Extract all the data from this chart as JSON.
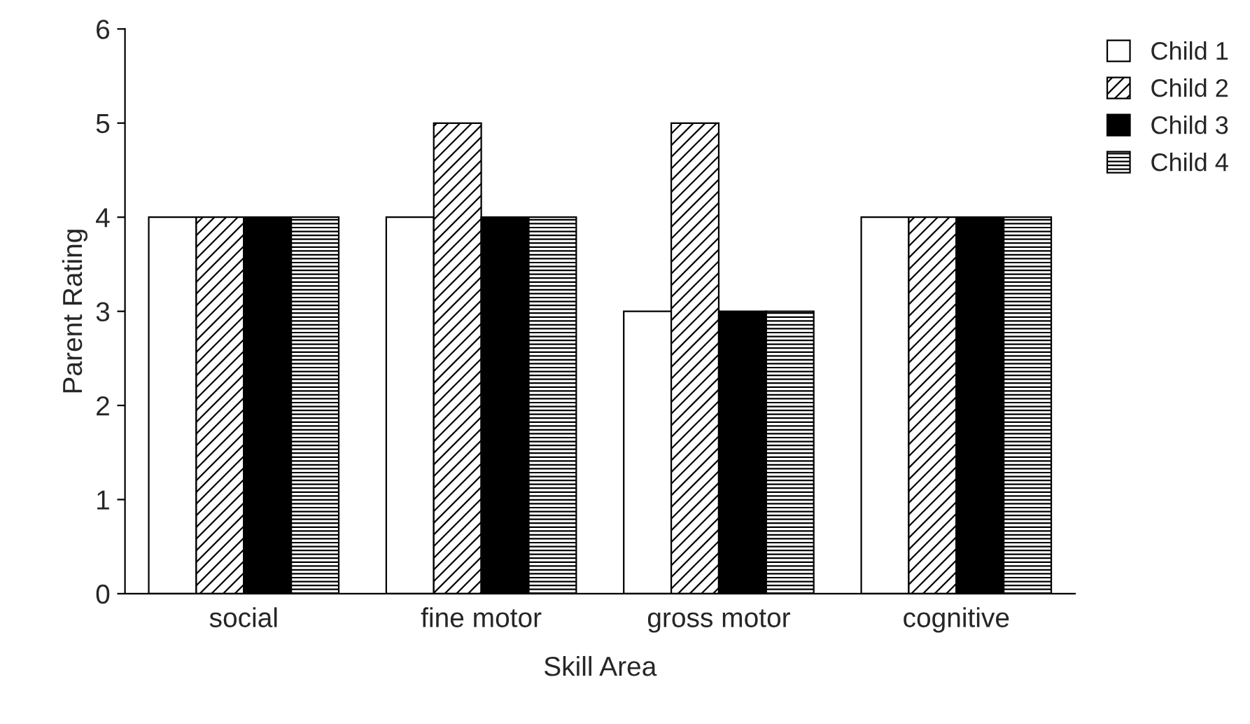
{
  "chart_data": {
    "type": "bar",
    "xlabel": "Skill Area",
    "ylabel": "Parent Rating",
    "categories": [
      "social",
      "fine motor",
      "gross motor",
      "cognitive"
    ],
    "series": [
      {
        "name": "Child 1",
        "color": "#ffffff",
        "values": [
          4,
          4,
          3,
          4
        ]
      },
      {
        "name": "Child 2",
        "color": "#000000",
        "values": [
          4,
          5,
          5,
          4
        ]
      },
      {
        "name": "Child 3",
        "color": "#000000",
        "values": [
          4,
          4,
          3,
          4
        ]
      },
      {
        "name": "Child 4",
        "color": "#000000",
        "values": [
          4,
          4,
          3,
          4
        ]
      }
    ],
    "ylim": [
      0,
      6
    ],
    "yticks": [
      0,
      1,
      2,
      3,
      4,
      5,
      6
    ],
    "grid": false,
    "legend": "right"
  }
}
